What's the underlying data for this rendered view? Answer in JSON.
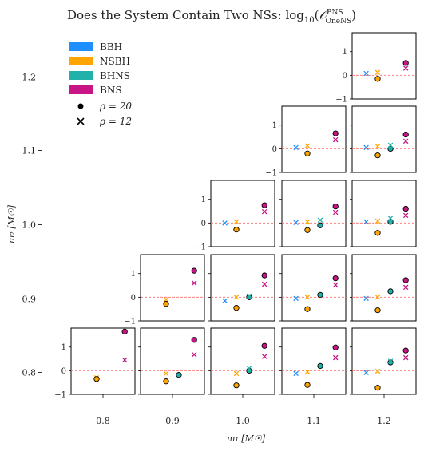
{
  "chart_data": {
    "type": "scatter",
    "title": "Does the System Contain Two NSs: log₁₀(𝒪ᴮᴺˢ OneNS)",
    "title_main": "Does the System Contain Two NSs: log",
    "title_sub10": "10",
    "title_O": "𝒪",
    "title_sup": "BNS",
    "title_subO": "OneNS",
    "xlabel": "m₁ [M☉]",
    "ylabel": "m₂ [M☉]",
    "outer_x_ticks": [
      "0.8",
      "0.9",
      "1.0",
      "1.1",
      "1.2"
    ],
    "outer_y_ticks": [
      "1.2",
      "1.1",
      "1.0",
      "0.9",
      "0.8"
    ],
    "inner_ylim": [
      -1,
      1.8
    ],
    "inner_y_ticks": [
      "1",
      "0",
      "−1"
    ],
    "reference_line": 0,
    "legend": {
      "placement": "top-left",
      "entries": [
        {
          "label": "BBH",
          "kind": "patch",
          "color": "#1f8fff"
        },
        {
          "label": "NSBH",
          "kind": "patch",
          "color": "#ffa500"
        },
        {
          "label": "BHNS",
          "kind": "patch",
          "color": "#20b2aa"
        },
        {
          "label": "BNS",
          "kind": "patch",
          "color": "#c71585"
        },
        {
          "label": "ρ = 20",
          "kind": "circle",
          "color": "#000000"
        },
        {
          "label": "ρ = 12",
          "kind": "cross",
          "color": "#000000"
        }
      ]
    },
    "series_colors": {
      "BBH": "#1f8fff",
      "NSBH": "#ffa500",
      "BHNS": "#20b2aa",
      "BNS": "#c71585"
    },
    "panels": [
      {
        "m1": 1.2,
        "m2": 1.2,
        "points": [
          {
            "cls": "BBH",
            "rho": 12,
            "y": 0.08
          },
          {
            "cls": "NSBH",
            "rho": 12,
            "y": 0.12
          },
          {
            "cls": "NSBH",
            "rho": 20,
            "y": -0.15
          },
          {
            "cls": "BNS",
            "rho": 20,
            "y": 0.52
          },
          {
            "cls": "BNS",
            "rho": 12,
            "y": 0.3
          }
        ]
      },
      {
        "m1": 1.1,
        "m2": 1.1,
        "points": [
          {
            "cls": "BBH",
            "rho": 12,
            "y": 0.05
          },
          {
            "cls": "NSBH",
            "rho": 12,
            "y": 0.12
          },
          {
            "cls": "NSBH",
            "rho": 20,
            "y": -0.2
          },
          {
            "cls": "BNS",
            "rho": 20,
            "y": 0.65
          },
          {
            "cls": "BNS",
            "rho": 12,
            "y": 0.38
          }
        ]
      },
      {
        "m1": 1.2,
        "m2": 1.1,
        "points": [
          {
            "cls": "BBH",
            "rho": 12,
            "y": 0.05
          },
          {
            "cls": "NSBH",
            "rho": 12,
            "y": 0.1
          },
          {
            "cls": "NSBH",
            "rho": 20,
            "y": -0.28
          },
          {
            "cls": "BHNS",
            "rho": 20,
            "y": 0.0
          },
          {
            "cls": "BHNS",
            "rho": 12,
            "y": 0.15
          },
          {
            "cls": "BNS",
            "rho": 20,
            "y": 0.6
          },
          {
            "cls": "BNS",
            "rho": 12,
            "y": 0.32
          }
        ]
      },
      {
        "m1": 1.0,
        "m2": 1.0,
        "points": [
          {
            "cls": "BBH",
            "rho": 12,
            "y": 0.0
          },
          {
            "cls": "NSBH",
            "rho": 12,
            "y": 0.05
          },
          {
            "cls": "NSBH",
            "rho": 20,
            "y": -0.28
          },
          {
            "cls": "BNS",
            "rho": 20,
            "y": 0.75
          },
          {
            "cls": "BNS",
            "rho": 12,
            "y": 0.48
          }
        ]
      },
      {
        "m1": 1.1,
        "m2": 1.0,
        "points": [
          {
            "cls": "BBH",
            "rho": 12,
            "y": 0.02
          },
          {
            "cls": "NSBH",
            "rho": 12,
            "y": 0.05
          },
          {
            "cls": "NSBH",
            "rho": 20,
            "y": -0.3
          },
          {
            "cls": "BHNS",
            "rho": 20,
            "y": -0.1
          },
          {
            "cls": "BHNS",
            "rho": 12,
            "y": 0.12
          },
          {
            "cls": "BNS",
            "rho": 20,
            "y": 0.7
          },
          {
            "cls": "BNS",
            "rho": 12,
            "y": 0.45
          }
        ]
      },
      {
        "m1": 1.2,
        "m2": 1.0,
        "points": [
          {
            "cls": "BBH",
            "rho": 12,
            "y": 0.05
          },
          {
            "cls": "NSBH",
            "rho": 12,
            "y": 0.08
          },
          {
            "cls": "NSBH",
            "rho": 20,
            "y": -0.42
          },
          {
            "cls": "BHNS",
            "rho": 20,
            "y": 0.05
          },
          {
            "cls": "BHNS",
            "rho": 12,
            "y": 0.2
          },
          {
            "cls": "BNS",
            "rho": 20,
            "y": 0.6
          },
          {
            "cls": "BNS",
            "rho": 12,
            "y": 0.32
          }
        ]
      },
      {
        "m1": 0.9,
        "m2": 0.9,
        "points": [
          {
            "cls": "NSBH",
            "rho": 12,
            "y": -0.1
          },
          {
            "cls": "NSBH",
            "rho": 20,
            "y": -0.28
          },
          {
            "cls": "BNS",
            "rho": 20,
            "y": 1.12
          },
          {
            "cls": "BNS",
            "rho": 12,
            "y": 0.6
          }
        ]
      },
      {
        "m1": 1.0,
        "m2": 0.9,
        "points": [
          {
            "cls": "BBH",
            "rho": 12,
            "y": -0.15
          },
          {
            "cls": "NSBH",
            "rho": 12,
            "y": 0.0
          },
          {
            "cls": "NSBH",
            "rho": 20,
            "y": -0.45
          },
          {
            "cls": "BHNS",
            "rho": 20,
            "y": 0.0
          },
          {
            "cls": "BHNS",
            "rho": 12,
            "y": 0.05
          },
          {
            "cls": "BNS",
            "rho": 20,
            "y": 0.92
          },
          {
            "cls": "BNS",
            "rho": 12,
            "y": 0.55
          }
        ]
      },
      {
        "m1": 1.1,
        "m2": 0.9,
        "points": [
          {
            "cls": "BBH",
            "rho": 12,
            "y": -0.05
          },
          {
            "cls": "NSBH",
            "rho": 12,
            "y": 0.0
          },
          {
            "cls": "NSBH",
            "rho": 20,
            "y": -0.5
          },
          {
            "cls": "BHNS",
            "rho": 20,
            "y": 0.1
          },
          {
            "cls": "BNS",
            "rho": 20,
            "y": 0.8
          },
          {
            "cls": "BNS",
            "rho": 12,
            "y": 0.52
          }
        ]
      },
      {
        "m1": 1.2,
        "m2": 0.9,
        "points": [
          {
            "cls": "BBH",
            "rho": 12,
            "y": -0.05
          },
          {
            "cls": "NSBH",
            "rho": 12,
            "y": 0.0
          },
          {
            "cls": "NSBH",
            "rho": 20,
            "y": -0.55
          },
          {
            "cls": "BHNS",
            "rho": 20,
            "y": 0.25
          },
          {
            "cls": "BNS",
            "rho": 20,
            "y": 0.72
          },
          {
            "cls": "BNS",
            "rho": 12,
            "y": 0.42
          }
        ]
      },
      {
        "m1": 0.8,
        "m2": 0.8,
        "points": [
          {
            "cls": "NSBH",
            "rho": 12,
            "y": -0.3
          },
          {
            "cls": "NSBH",
            "rho": 20,
            "y": -0.35
          },
          {
            "cls": "BNS",
            "rho": 20,
            "y": 1.65
          },
          {
            "cls": "BNS",
            "rho": 12,
            "y": 0.45
          }
        ]
      },
      {
        "m1": 0.9,
        "m2": 0.8,
        "points": [
          {
            "cls": "NSBH",
            "rho": 12,
            "y": -0.12
          },
          {
            "cls": "NSBH",
            "rho": 20,
            "y": -0.45
          },
          {
            "cls": "BHNS",
            "rho": 20,
            "y": -0.18
          },
          {
            "cls": "BNS",
            "rho": 20,
            "y": 1.3
          },
          {
            "cls": "BNS",
            "rho": 12,
            "y": 0.68
          }
        ]
      },
      {
        "m1": 1.0,
        "m2": 0.8,
        "points": [
          {
            "cls": "NSBH",
            "rho": 12,
            "y": -0.12
          },
          {
            "cls": "NSBH",
            "rho": 20,
            "y": -0.62
          },
          {
            "cls": "BHNS",
            "rho": 20,
            "y": 0.0
          },
          {
            "cls": "BHNS",
            "rho": 12,
            "y": 0.1
          },
          {
            "cls": "BNS",
            "rho": 20,
            "y": 1.05
          },
          {
            "cls": "BNS",
            "rho": 12,
            "y": 0.6
          }
        ]
      },
      {
        "m1": 1.1,
        "m2": 0.8,
        "points": [
          {
            "cls": "BBH",
            "rho": 12,
            "y": -0.12
          },
          {
            "cls": "NSBH",
            "rho": 12,
            "y": -0.05
          },
          {
            "cls": "NSBH",
            "rho": 20,
            "y": -0.6
          },
          {
            "cls": "BHNS",
            "rho": 20,
            "y": 0.2
          },
          {
            "cls": "BNS",
            "rho": 20,
            "y": 0.98
          },
          {
            "cls": "BNS",
            "rho": 12,
            "y": 0.55
          }
        ]
      },
      {
        "m1": 1.2,
        "m2": 0.8,
        "points": [
          {
            "cls": "BBH",
            "rho": 12,
            "y": -0.08
          },
          {
            "cls": "NSBH",
            "rho": 12,
            "y": -0.02
          },
          {
            "cls": "NSBH",
            "rho": 20,
            "y": -0.72
          },
          {
            "cls": "BHNS",
            "rho": 20,
            "y": 0.35
          },
          {
            "cls": "BHNS",
            "rho": 12,
            "y": 0.4
          },
          {
            "cls": "BNS",
            "rho": 20,
            "y": 0.85
          },
          {
            "cls": "BNS",
            "rho": 12,
            "y": 0.55
          }
        ]
      }
    ]
  }
}
